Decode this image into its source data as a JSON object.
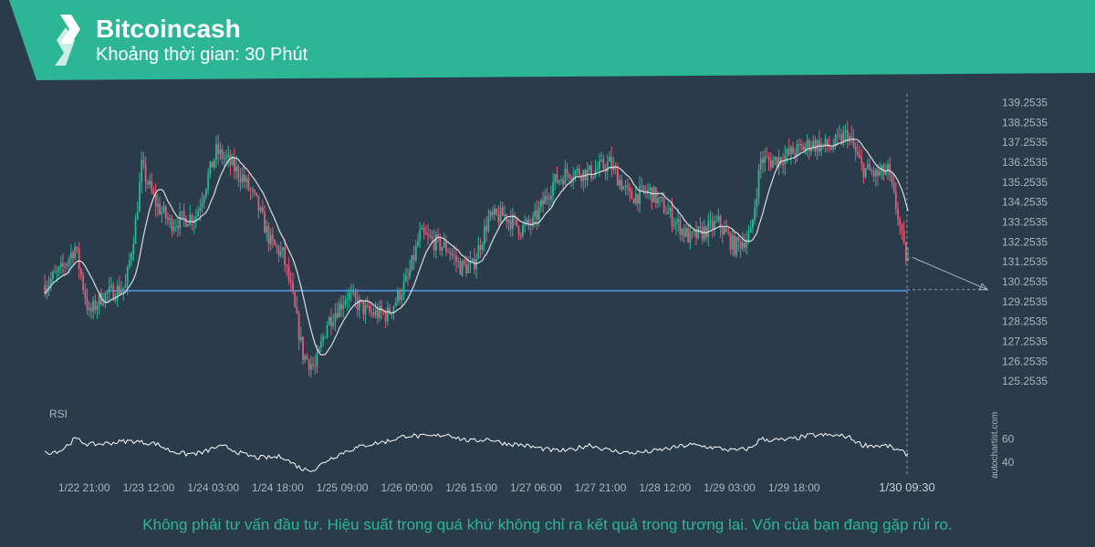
{
  "header": {
    "title": "Bitcoincash",
    "subtitle": "Khoảng thời gian: 30 Phút"
  },
  "footer": {
    "disclaimer": "Không phải tư vấn đầu tư. Hiệu suất trong quá khứ không chỉ ra kết quả trong tương lai. Vốn của bạn đang gặp rủi ro."
  },
  "watermark": "autochartist.com",
  "colors": {
    "banner": "#2cb696",
    "background": "#2a3b4b",
    "bull": "#2cb696",
    "bear": "#e05c78",
    "support": "#4a86c8",
    "ma": "#d9dde1"
  },
  "icons": {
    "logo": "autochartist-logo-icon"
  },
  "chart_data": {
    "type": "candlestick",
    "ylim": [
      124.8,
      139.6
    ],
    "y_ticks": [
      "139.2535",
      "138.2535",
      "137.2535",
      "136.2535",
      "135.2535",
      "134.2535",
      "133.2535",
      "132.2535",
      "131.2535",
      "130.2535",
      "129.2535",
      "128.2535",
      "127.2535",
      "126.2535",
      "125.2535"
    ],
    "x_ticks": [
      "1/22 21:00",
      "1/23 12:00",
      "1/24 03:00",
      "1/24 18:00",
      "1/25 09:00",
      "1/26 00:00",
      "1/26 15:00",
      "1/27 06:00",
      "1/27 21:00",
      "1/28 12:00",
      "1/29 03:00",
      "1/29 18:00"
    ],
    "x_tick_bars": [
      20,
      52,
      84,
      116,
      148,
      180,
      212,
      244,
      276,
      308,
      340,
      372
    ],
    "last_time": "1/30 09:30",
    "support_level": 129.8,
    "support_from_bar": 31,
    "forecast": {
      "to_bar": 468,
      "to_price": 129.85
    },
    "price_anchors": [
      [
        0,
        130.1
      ],
      [
        8,
        130.8
      ],
      [
        15,
        132.0
      ],
      [
        22,
        128.6
      ],
      [
        28,
        129.5
      ],
      [
        40,
        130.0
      ],
      [
        45,
        133.2
      ],
      [
        48,
        136.0
      ],
      [
        55,
        134.2
      ],
      [
        62,
        133.2
      ],
      [
        75,
        133.6
      ],
      [
        85,
        136.8
      ],
      [
        90,
        136.4
      ],
      [
        98,
        135.5
      ],
      [
        105,
        134.2
      ],
      [
        112,
        132.2
      ],
      [
        118,
        131.6
      ],
      [
        122,
        129.9
      ],
      [
        128,
        126.6
      ],
      [
        134,
        125.9
      ],
      [
        140,
        128.2
      ],
      [
        150,
        129.6
      ],
      [
        160,
        128.7
      ],
      [
        170,
        128.6
      ],
      [
        180,
        130.4
      ],
      [
        186,
        132.6
      ],
      [
        192,
        132.3
      ],
      [
        200,
        131.9
      ],
      [
        206,
        131.0
      ],
      [
        212,
        131.0
      ],
      [
        220,
        133.4
      ],
      [
        228,
        133.6
      ],
      [
        236,
        132.9
      ],
      [
        242,
        133.2
      ],
      [
        252,
        135.2
      ],
      [
        260,
        135.8
      ],
      [
        270,
        135.7
      ],
      [
        280,
        136.2
      ],
      [
        290,
        134.5
      ],
      [
        300,
        134.8
      ],
      [
        310,
        133.6
      ],
      [
        320,
        132.4
      ],
      [
        334,
        133.2
      ],
      [
        342,
        132.0
      ],
      [
        350,
        132.6
      ],
      [
        355,
        136.4
      ],
      [
        360,
        136.3
      ],
      [
        368,
        136.6
      ],
      [
        380,
        137.2
      ],
      [
        390,
        137.0
      ],
      [
        398,
        137.7
      ],
      [
        405,
        136.0
      ],
      [
        412,
        135.6
      ],
      [
        418,
        135.8
      ],
      [
        423,
        133.6
      ],
      [
        426,
        131.8
      ],
      [
        428,
        131.3
      ]
    ],
    "rsi": {
      "label": "RSI",
      "ticks": [
        "60",
        "40"
      ],
      "ylim": [
        30,
        75
      ],
      "anchors": [
        [
          0,
          48
        ],
        [
          8,
          50
        ],
        [
          15,
          60
        ],
        [
          22,
          55
        ],
        [
          30,
          56
        ],
        [
          40,
          58
        ],
        [
          45,
          58
        ],
        [
          48,
          57
        ],
        [
          55,
          56
        ],
        [
          62,
          50
        ],
        [
          70,
          47
        ],
        [
          78,
          48
        ],
        [
          85,
          53
        ],
        [
          90,
          53
        ],
        [
          98,
          47
        ],
        [
          105,
          44
        ],
        [
          112,
          44
        ],
        [
          118,
          45
        ],
        [
          122,
          40
        ],
        [
          128,
          34
        ],
        [
          134,
          34
        ],
        [
          140,
          42
        ],
        [
          150,
          50
        ],
        [
          160,
          55
        ],
        [
          170,
          58
        ],
        [
          180,
          63
        ],
        [
          186,
          62
        ],
        [
          192,
          62
        ],
        [
          200,
          64
        ],
        [
          206,
          60
        ],
        [
          212,
          58
        ],
        [
          220,
          60
        ],
        [
          228,
          56
        ],
        [
          236,
          55
        ],
        [
          242,
          53
        ],
        [
          252,
          50
        ],
        [
          260,
          50
        ],
        [
          270,
          55
        ],
        [
          280,
          50
        ],
        [
          290,
          48
        ],
        [
          300,
          49
        ],
        [
          310,
          52
        ],
        [
          320,
          55
        ],
        [
          334,
          52
        ],
        [
          342,
          50
        ],
        [
          350,
          52
        ],
        [
          355,
          60
        ],
        [
          360,
          59
        ],
        [
          368,
          59
        ],
        [
          380,
          63
        ],
        [
          390,
          63
        ],
        [
          398,
          62
        ],
        [
          405,
          55
        ],
        [
          412,
          54
        ],
        [
          418,
          54
        ],
        [
          423,
          50
        ],
        [
          426,
          48
        ],
        [
          428,
          47
        ]
      ]
    }
  }
}
